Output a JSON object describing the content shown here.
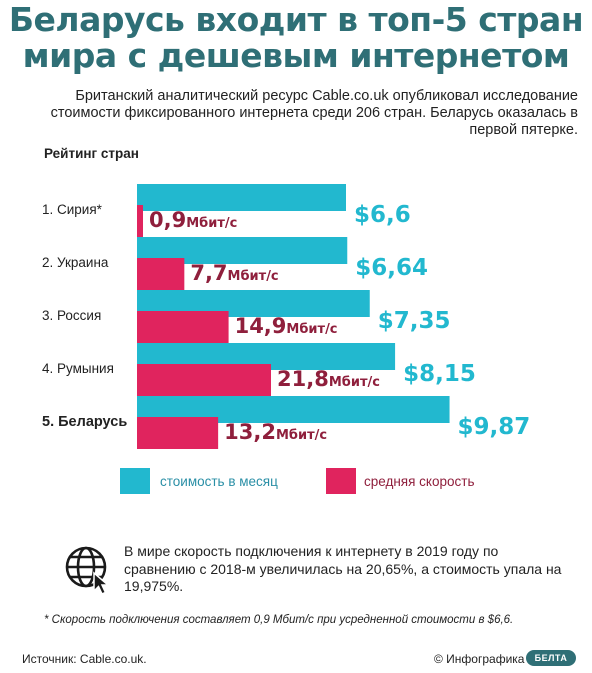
{
  "title": "Беларусь входит в топ-5 стран мира с дешевым интернетом",
  "subtitle": "Британский аналитический ресурс Cable.co.uk опубликовал исследование стоимости фиксированного интернета среди 206 стран. Беларусь оказалась в первой пятерке.",
  "rating_label": "Рейтинг стран",
  "chart_data": {
    "type": "bar",
    "categories": [
      "1. Сирия*",
      "2. Украина",
      "3. Россия",
      "4. Румыния",
      "5. Беларусь"
    ],
    "series": [
      {
        "name": "стоимость в месяц",
        "values": [
          6.6,
          6.64,
          7.35,
          8.15,
          9.87
        ],
        "labels": [
          "$6,6",
          "$6,64",
          "$7,35",
          "$8,15",
          "$9,87"
        ]
      },
      {
        "name": "средняя скорость",
        "values": [
          0.9,
          7.7,
          14.9,
          21.8,
          13.2
        ],
        "labels": [
          "0,9",
          "7,7",
          "14,9",
          "21,8",
          "13,2"
        ],
        "unit": "Мбит/с"
      }
    ],
    "highlight_category": "5. Беларусь",
    "colors": {
      "cost": "#22b8cf",
      "speed": "#e0245e"
    }
  },
  "legend": {
    "cost_label": "стоимость в месяц",
    "speed_label": "средняя скорость"
  },
  "world_note": "В мире скорость подключения к интернету в 2019 году по сравнению с 2018-м увеличилась на 20,65%, а стоимость упала на 19,975%.",
  "footnote": "* Скорость подключения составляет 0,9 Мбит/с при усредненной стоимости в $6,6.",
  "source": "Источник: Cable.co.uk.",
  "credit": "© Инфографика",
  "logo_text": "БЕЛТА",
  "icons": {
    "world_note": "globe-cursor-icon"
  }
}
